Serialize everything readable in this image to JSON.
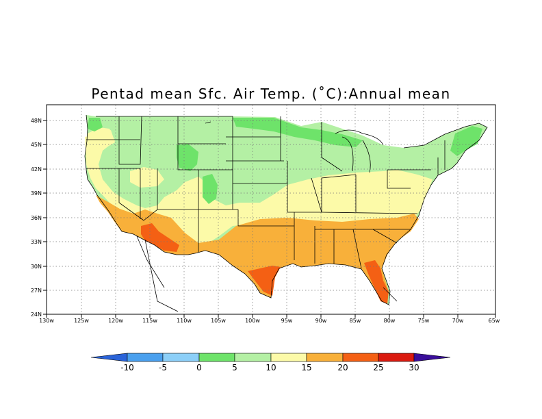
{
  "title": "Pentad mean Sfc. Air Temp. (˚C):Annual mean",
  "lon_labels": [
    "130w",
    "125w",
    "120w",
    "115w",
    "110w",
    "105w",
    "100w",
    "95w",
    "90w",
    "85w",
    "80w",
    "75w",
    "70w",
    "65w"
  ],
  "lat_labels": [
    "24N",
    "27N",
    "30N",
    "33N",
    "36N",
    "39N",
    "42N",
    "45N",
    "48N"
  ],
  "colorbar": {
    "ticks": [
      "-10",
      "-5",
      "0",
      "5",
      "10",
      "15",
      "20",
      "25",
      "30"
    ],
    "colors": [
      "#2a63d8",
      "#4aa0ee",
      "#8ccff8",
      "#6ee36a",
      "#b4f0a4",
      "#fcfaa8",
      "#f8b03a",
      "#f46014",
      "#da1a10",
      "#3a0e9a"
    ]
  },
  "colors": {
    "cold": "#6ee36a",
    "cool": "#b4f0a4",
    "mild": "#fcfaa8",
    "warm": "#f8b03a",
    "hot": "#f46014"
  }
}
